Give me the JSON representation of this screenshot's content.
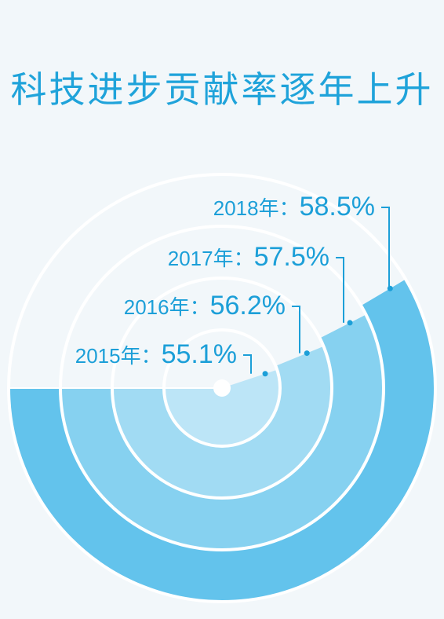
{
  "title": "科技进步贡献率逐年上升",
  "colors": {
    "background": "#f2f7fa",
    "title": "#1fa3da",
    "label": "#1c9fd8",
    "ring_outer": "#63c3ec",
    "ring_2": "#86d1f0",
    "ring_3": "#a1dbf3",
    "ring_inner": "#bce5f7",
    "remainder": "#f2f7fa",
    "separator": "#ffffff",
    "leader": "#1c9fd8"
  },
  "chart_data": {
    "type": "radial_bar",
    "title": "科技进步贡献率逐年上升",
    "unit": "%",
    "range": [
      0,
      100
    ],
    "series": [
      {
        "year": "2015",
        "label": "2015年：",
        "value": 55.1,
        "value_text": "55.1%"
      },
      {
        "year": "2016",
        "label": "2016年：",
        "value": 56.2,
        "value_text": "56.2%"
      },
      {
        "year": "2017",
        "label": "2017年：",
        "value": 57.5,
        "value_text": "57.5%"
      },
      {
        "year": "2018",
        "label": "2018年：",
        "value": 58.5,
        "value_text": "58.5%"
      }
    ]
  }
}
